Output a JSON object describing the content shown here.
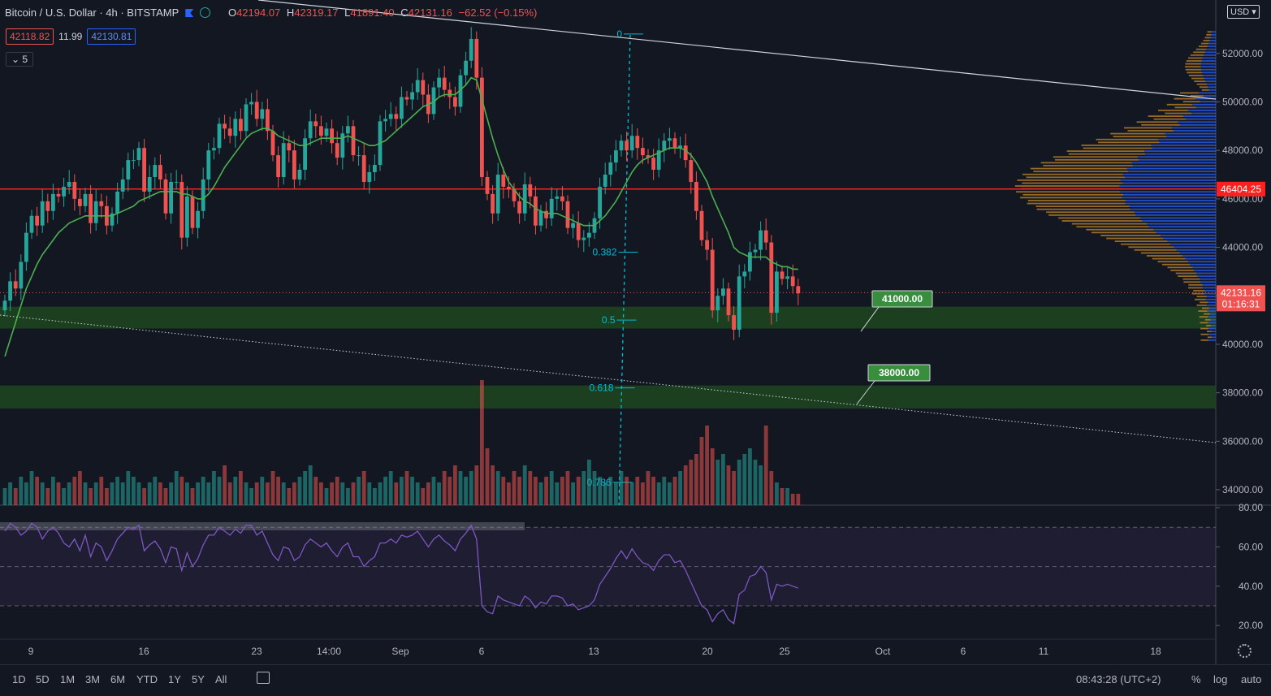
{
  "header": {
    "symbol": "Bitcoin / U.S. Dollar · 4h · BITSTAMP",
    "ohlc": [
      {
        "k": "O",
        "v": "42194.07"
      },
      {
        "k": "H",
        "v": "42319.17"
      },
      {
        "k": "L",
        "v": "41891.40"
      },
      {
        "k": "C",
        "v": "42131.16"
      }
    ],
    "change": "−62.52 (−0.15%)",
    "bid": "42118.82",
    "spread": "11.99",
    "ask": "42130.81",
    "indicator_count": "5"
  },
  "currency": "USD",
  "colors": {
    "up": "#26a69a",
    "down": "#ef5350",
    "ma": "#4caf50",
    "rsi": "#7e57c2",
    "zone": "#1e4620",
    "hline": "#ff1f1f"
  },
  "chart_data": {
    "type": "candlestick",
    "price_axis": {
      "range": [
        33000,
        54000
      ],
      "ticks": [
        34000,
        36000,
        38000,
        40000,
        42000,
        44000,
        46000,
        48000,
        50000,
        52000
      ]
    },
    "time_axis_labels": [
      "9",
      "16",
      "23",
      "14:00",
      "Sep",
      "6",
      "13",
      "20",
      "25",
      "Oct",
      "6",
      "11",
      "18"
    ],
    "closes": [
      41800,
      42600,
      42300,
      43400,
      44600,
      45300,
      44900,
      45900,
      45500,
      46200,
      46100,
      46500,
      46700,
      46000,
      45700,
      46200,
      45000,
      45900,
      45700,
      44900,
      45400,
      46300,
      46800,
      47600,
      47600,
      48100,
      46300,
      46900,
      47400,
      46800,
      45400,
      46700,
      46700,
      44400,
      46100,
      44800,
      45500,
      46800,
      48000,
      48100,
      49100,
      48900,
      48600,
      49300,
      48800,
      49900,
      50000,
      49300,
      49700,
      48800,
      47800,
      46900,
      48300,
      48000,
      46800,
      47200,
      48500,
      49200,
      49000,
      48600,
      48900,
      48300,
      47700,
      48700,
      49000,
      47800,
      47800,
      46700,
      47100,
      47400,
      49200,
      49300,
      49500,
      49300,
      50200,
      50100,
      50400,
      50900,
      50300,
      49500,
      50600,
      51000,
      50500,
      50200,
      49800,
      51100,
      51700,
      52600,
      51000,
      46900,
      46200,
      45400,
      47000,
      46500,
      46400,
      45900,
      45400,
      46600,
      46100,
      44900,
      45500,
      45200,
      46000,
      46100,
      45900,
      44800,
      45000,
      44300,
      44400,
      44600,
      45200,
      46500,
      47000,
      47500,
      48000,
      48400,
      48000,
      48600,
      48100,
      47800,
      47700,
      47200,
      48000,
      48400,
      48500,
      48100,
      48200,
      47600,
      46700,
      45500,
      44300,
      43900,
      41400,
      42000,
      42300,
      41200,
      40600,
      42800,
      43000,
      43800,
      43900,
      44700,
      44200,
      41300,
      43000,
      42700,
      42800,
      42400,
      42100
    ],
    "ma_closes": [
      39500,
      40200,
      40900,
      41600,
      42300,
      42800,
      43300,
      43700,
      44000,
      44300,
      44600,
      44800,
      45000,
      45100,
      45200,
      45300,
      45300,
      45300,
      45300,
      45300,
      45300,
      45400,
      45500,
      45600,
      45700,
      45900,
      46000,
      46100,
      46200,
      46300,
      46300,
      46300,
      46300,
      46200,
      46200,
      46100,
      46000,
      46000,
      46200,
      46500,
      46900,
      47300,
      47600,
      47900,
      48200,
      48500,
      48700,
      48800,
      48900,
      48900,
      48800,
      48600,
      48500,
      48400,
      48300,
      48200,
      48200,
      48300,
      48400,
      48500,
      48500,
      48500,
      48500,
      48500,
      48600,
      48500,
      48400,
      48300,
      48200,
      48200,
      48300,
      48400,
      48600,
      48800,
      49000,
      49200,
      49400,
      49600,
      49800,
      49900,
      50000,
      50200,
      50300,
      50300,
      50300,
      50500,
      50700,
      51000,
      50900,
      50100,
      49300,
      48500,
      47800,
      47200,
      46700,
      46400,
      46100,
      45900,
      45800,
      45600,
      45500,
      45400,
      45400,
      45400,
      45300,
      45200,
      45100,
      45000,
      44900,
      44900,
      44900,
      45100,
      45300,
      45600,
      45900,
      46300,
      46700,
      47100,
      47400,
      47600,
      47700,
      47800,
      47900,
      48000,
      48100,
      48100,
      48100,
      48000,
      47800,
      47500,
      47100,
      46700,
      46100,
      45600,
      45100,
      44600,
      44000,
      43800,
      43700,
      43600,
      43600,
      43600,
      43600,
      43400,
      43300,
      43200,
      43200,
      43100,
      43100
    ],
    "volumes": [
      3,
      4,
      3,
      5,
      4,
      6,
      5,
      4,
      3,
      5,
      4,
      3,
      4,
      5,
      6,
      4,
      3,
      4,
      5,
      3,
      4,
      5,
      4,
      6,
      5,
      4,
      3,
      4,
      5,
      4,
      3,
      4,
      6,
      5,
      4,
      3,
      4,
      5,
      4,
      6,
      5,
      7,
      4,
      5,
      6,
      4,
      3,
      4,
      5,
      4,
      6,
      5,
      4,
      3,
      4,
      5,
      6,
      7,
      5,
      4,
      3,
      4,
      5,
      4,
      3,
      4,
      5,
      6,
      4,
      3,
      4,
      5,
      6,
      4,
      5,
      6,
      5,
      4,
      3,
      4,
      5,
      4,
      6,
      5,
      7,
      6,
      5,
      6,
      7,
      22,
      10,
      7,
      6,
      5,
      4,
      6,
      5,
      7,
      6,
      5,
      4,
      5,
      6,
      4,
      5,
      6,
      4,
      5,
      6,
      8,
      6,
      5,
      4,
      5,
      4,
      6,
      5,
      4,
      5,
      4,
      6,
      5,
      4,
      5,
      4,
      5,
      6,
      7,
      8,
      9,
      12,
      14,
      10,
      8,
      9,
      7,
      6,
      8,
      9,
      10,
      8,
      7,
      14,
      6,
      4,
      3,
      3,
      2,
      2
    ],
    "fib_levels": [
      {
        "label": "0",
        "price": 52800
      },
      {
        "label": "0.382",
        "price": 43800
      },
      {
        "label": "0.5",
        "price": 41000
      },
      {
        "label": "0.618",
        "price": 38200
      },
      {
        "label": "0.786",
        "price": 34300
      }
    ],
    "horizontal_line": {
      "price": 46404.25,
      "label": "46404.25"
    },
    "last_price": {
      "price": 42131.16,
      "label": "42131.16",
      "countdown": "01:16:31"
    },
    "zones": [
      {
        "label": "41000.00",
        "low": 40650,
        "high": 41550
      },
      {
        "label": "38000.00",
        "low": 37350,
        "high": 38300
      }
    ],
    "rsi": {
      "range": [
        15,
        82
      ],
      "ticks": [
        20,
        40,
        60,
        80
      ],
      "bands": [
        30,
        50,
        70
      ],
      "values": [
        68,
        72,
        70,
        66,
        68,
        72,
        70,
        64,
        68,
        70,
        67,
        62,
        60,
        64,
        58,
        66,
        55,
        62,
        60,
        53,
        58,
        64,
        67,
        70,
        69,
        71,
        58,
        61,
        63,
        59,
        52,
        60,
        59,
        48,
        57,
        50,
        54,
        61,
        66,
        66,
        70,
        68,
        66,
        69,
        67,
        71,
        71,
        66,
        68,
        62,
        56,
        53,
        60,
        59,
        53,
        55,
        61,
        64,
        62,
        60,
        62,
        58,
        55,
        60,
        62,
        55,
        55,
        50,
        53,
        55,
        62,
        62,
        64,
        62,
        66,
        65,
        66,
        68,
        64,
        60,
        64,
        66,
        63,
        61,
        58,
        64,
        67,
        71,
        64,
        30,
        27,
        26,
        35,
        33,
        32,
        31,
        30,
        35,
        33,
        29,
        32,
        31,
        35,
        35,
        34,
        30,
        31,
        28,
        29,
        30,
        33,
        41,
        45,
        49,
        54,
        58,
        54,
        59,
        55,
        52,
        51,
        48,
        53,
        56,
        56,
        52,
        53,
        48,
        42,
        36,
        30,
        28,
        22,
        26,
        28,
        23,
        21,
        36,
        38,
        45,
        46,
        50,
        47,
        33,
        41,
        40,
        41,
        40,
        39
      ]
    }
  },
  "bottom_bar": {
    "timeframes": [
      "1D",
      "5D",
      "1M",
      "3M",
      "6M",
      "YTD",
      "1Y",
      "5Y",
      "All"
    ],
    "clock": "08:43:28 (UTC+2)",
    "percent": "%",
    "log": "log",
    "auto": "auto"
  }
}
